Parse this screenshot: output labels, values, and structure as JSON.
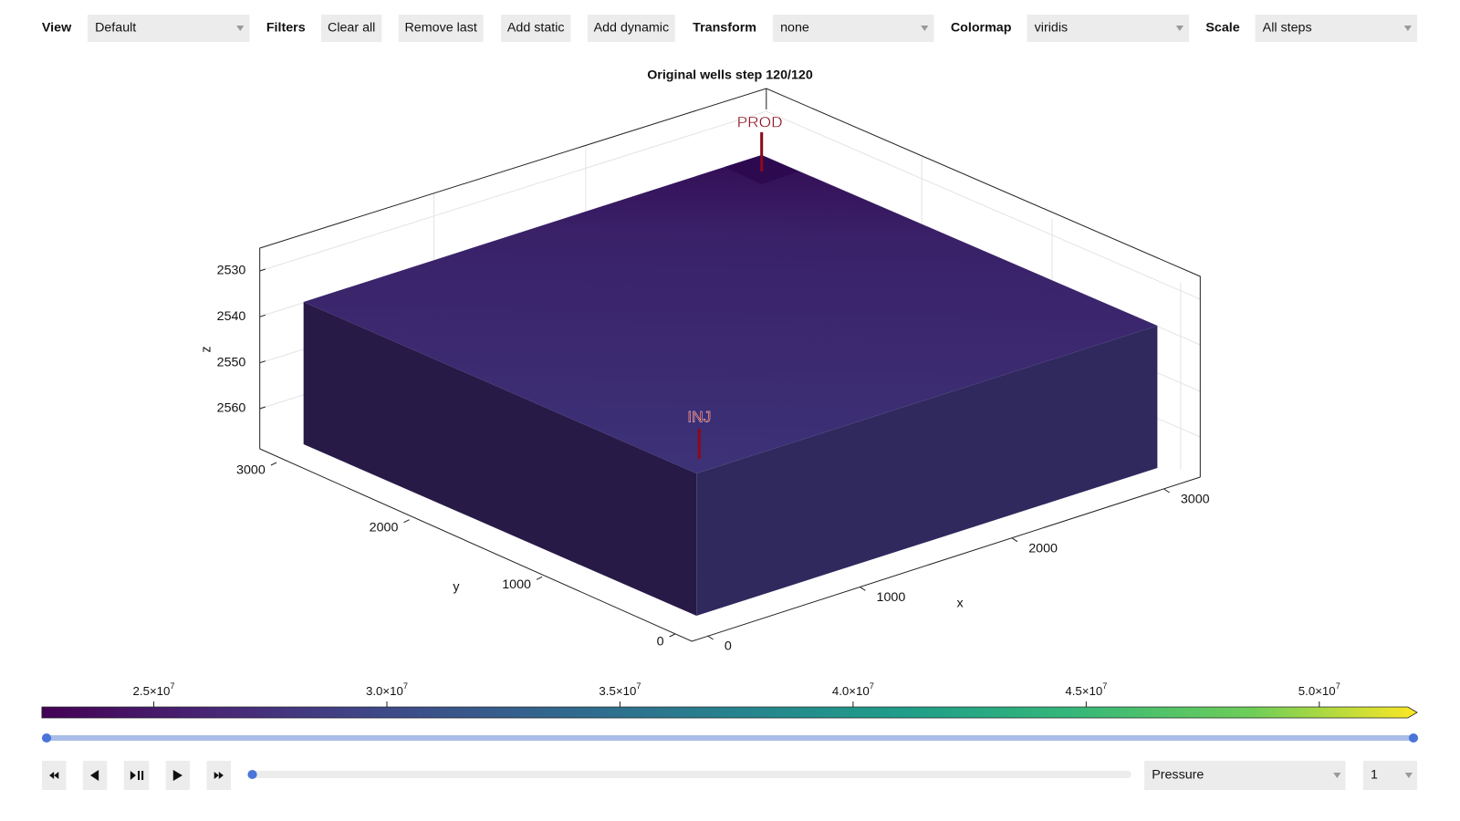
{
  "toolbar": {
    "view": {
      "label": "View",
      "value": "Default"
    },
    "filters": {
      "label": "Filters",
      "buttons": [
        "Clear all",
        "Remove last",
        "Add static",
        "Add dynamic"
      ]
    },
    "transform": {
      "label": "Transform",
      "value": "none"
    },
    "colormap": {
      "label": "Colormap",
      "value": "viridis"
    },
    "scale": {
      "label": "Scale",
      "value": "All steps"
    }
  },
  "plot": {
    "title": "Original wells step 120/120",
    "wells": [
      "PROD",
      "INJ"
    ],
    "axes": {
      "x": {
        "label": "x",
        "ticks": [
          0,
          1000,
          2000,
          3000
        ]
      },
      "y": {
        "label": "y",
        "ticks": [
          0,
          1000,
          2000,
          3000
        ]
      },
      "z": {
        "label": "z",
        "ticks": [
          2530,
          2540,
          2550,
          2560
        ]
      }
    }
  },
  "colorbar": {
    "lim": [
      22600000,
      51900000
    ],
    "ticks": [
      {
        "value": 25000000,
        "label": "2.5×10",
        "exponent": "7"
      },
      {
        "value": 30000000,
        "label": "3.0×10",
        "exponent": "7"
      },
      {
        "value": 35000000,
        "label": "3.5×10",
        "exponent": "7"
      },
      {
        "value": 40000000,
        "label": "4.0×10",
        "exponent": "7"
      },
      {
        "value": 45000000,
        "label": "4.5×10",
        "exponent": "7"
      },
      {
        "value": 50000000,
        "label": "5.0×10",
        "exponent": "7"
      }
    ]
  },
  "controls": {
    "variable": "Pressure",
    "index": "1"
  }
}
